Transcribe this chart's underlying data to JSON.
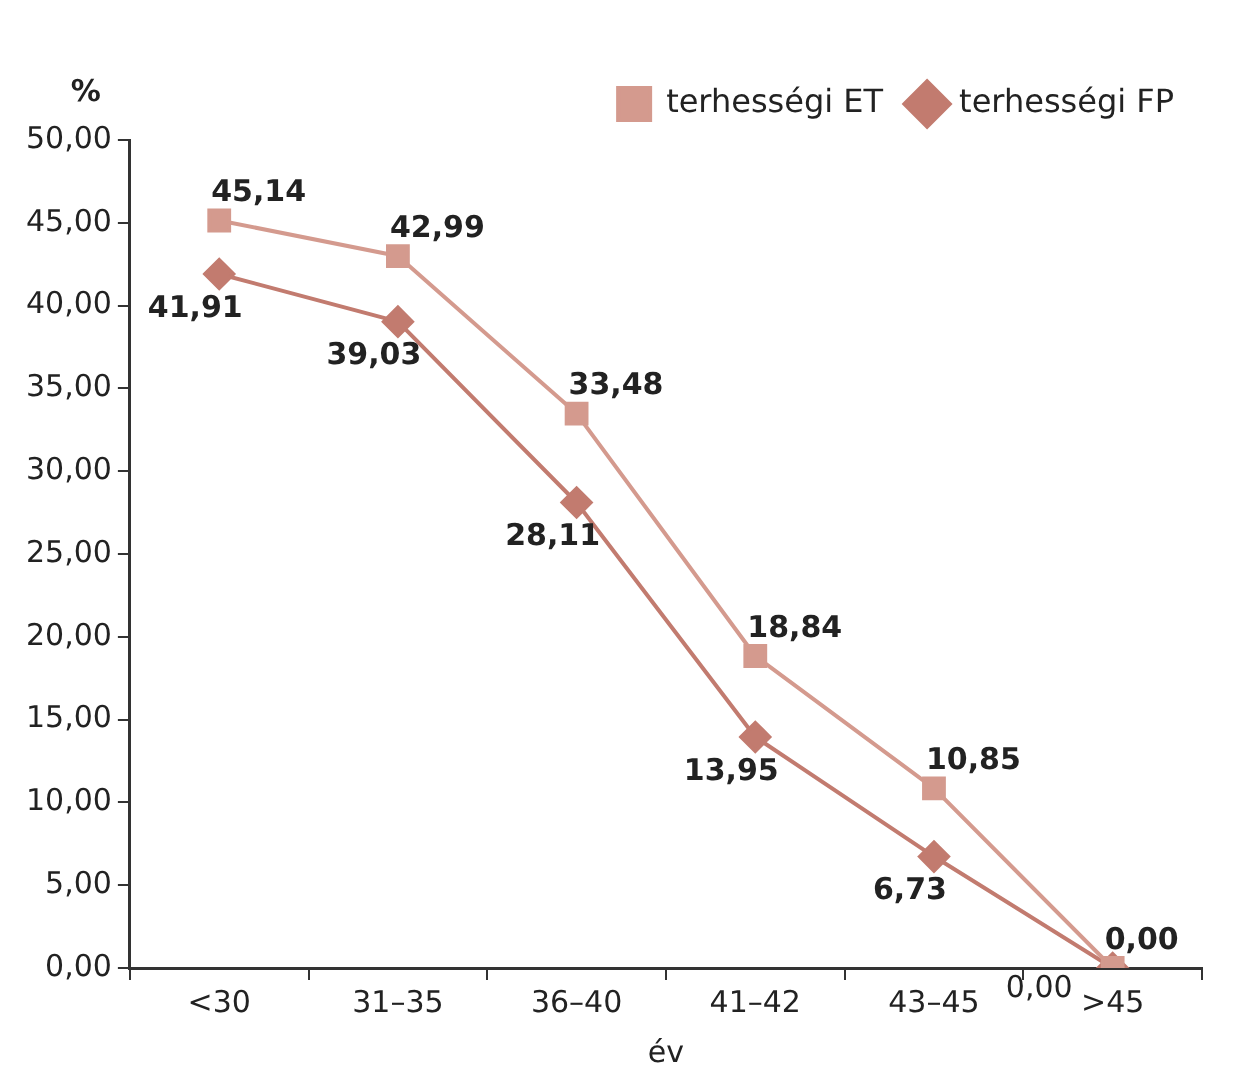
{
  "chart_data": {
    "type": "line",
    "xlabel": "év",
    "ylabel": "%",
    "categories": [
      "<30",
      "31–35",
      "36–40",
      "41–42",
      "43–45",
      ">45"
    ],
    "series": [
      {
        "name": "terhességi ET",
        "color": "#d49a8e",
        "marker": "square",
        "values": [
          45.14,
          42.99,
          33.48,
          18.84,
          10.85,
          0.0
        ],
        "value_labels": [
          "45,14",
          "42,99",
          "33,48",
          "18,84",
          "10,85",
          "0,00"
        ]
      },
      {
        "name": "terhességi FP",
        "color": "#c27b6f",
        "marker": "diamond",
        "values": [
          41.91,
          39.03,
          28.11,
          13.95,
          6.73,
          0.0
        ],
        "value_labels": [
          "41,91",
          "39,03",
          "28,11",
          "13,95",
          "6,73",
          null
        ]
      }
    ],
    "annotations": [
      {
        "text": "0,00",
        "x": ">45",
        "y": 0
      }
    ],
    "ylim": [
      0,
      50
    ],
    "yticks": [
      {
        "value": 0,
        "label": "0,00"
      },
      {
        "value": 5,
        "label": "5,00"
      },
      {
        "value": 10,
        "label": "10,00"
      },
      {
        "value": 15,
        "label": "15,00"
      },
      {
        "value": 20,
        "label": "20,00"
      },
      {
        "value": 25,
        "label": "25,00"
      },
      {
        "value": 30,
        "label": "30,00"
      },
      {
        "value": 35,
        "label": "35,00"
      },
      {
        "value": 40,
        "label": "40,00"
      },
      {
        "value": 45,
        "label": "45,00"
      },
      {
        "value": 50,
        "label": "50,00"
      }
    ],
    "grid": false,
    "legend": "top right",
    "line_style": "solid"
  }
}
